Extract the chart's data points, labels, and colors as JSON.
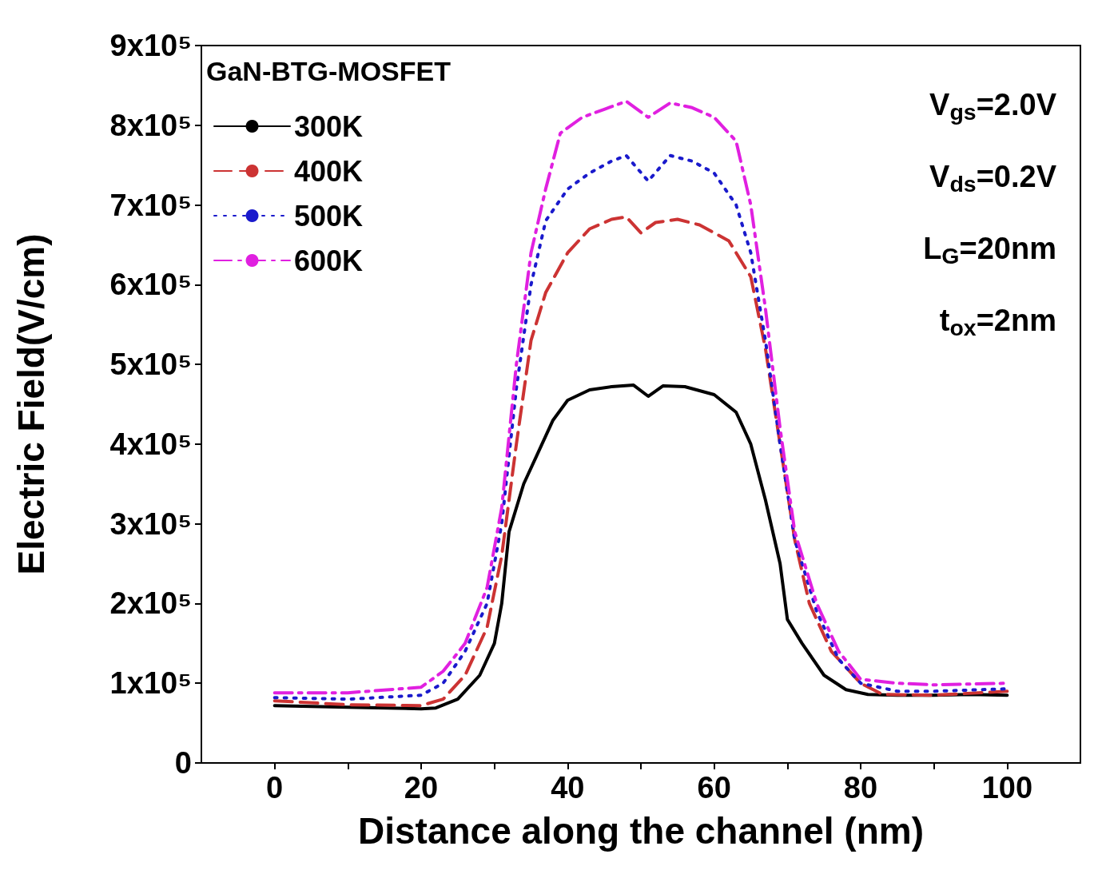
{
  "chart_data": {
    "type": "line",
    "xlabel": "Distance along the channel (nm)",
    "ylabel": "Electric Field(V/cm)",
    "legend_title": "GaN-BTG-MOSFET",
    "legend": "top left",
    "grid": false,
    "marker": "none",
    "xlim": [
      -10,
      110
    ],
    "xticks": [
      0,
      {
        "value": 10,
        "label": null
      },
      20,
      {
        "value": 30,
        "label": null
      },
      40,
      {
        "value": 50,
        "label": null
      },
      60,
      {
        "value": 70,
        "label": null
      },
      80,
      {
        "value": 90,
        "label": null
      },
      100
    ],
    "ylim": [
      0,
      900000
    ],
    "yticks": [
      0,
      {
        "value": 100000,
        "label": "1x10⁵"
      },
      {
        "value": 200000,
        "label": "2x10⁵"
      },
      {
        "value": 300000,
        "label": "3x10⁵"
      },
      {
        "value": 400000,
        "label": "4x10⁵"
      },
      {
        "value": 500000,
        "label": "5x10⁵"
      },
      {
        "value": 600000,
        "label": "6x10⁵"
      },
      {
        "value": 700000,
        "label": "7x10⁵"
      },
      {
        "value": 800000,
        "label": "8x10⁵"
      },
      {
        "value": 900000,
        "label": "9x10⁵"
      }
    ],
    "annotations": [
      "V$_{gs}$=2.0V",
      "V$_{ds}$=0.2V",
      "L$_{G}$=20nm",
      "t$_{ox}$=2nm"
    ],
    "series": [
      {
        "name": "300K",
        "color": "#000000",
        "line_style": "solid",
        "x": [
          0,
          10,
          20,
          22,
          25,
          28,
          30,
          31,
          32,
          34,
          36,
          38,
          40,
          43,
          46,
          49,
          51,
          53,
          56,
          60,
          63,
          65,
          67,
          69,
          70,
          72,
          75,
          78,
          81,
          85,
          90,
          95,
          100
        ],
        "values": [
          72000,
          70000,
          68000,
          69000,
          80000,
          110000,
          150000,
          200000,
          290000,
          350000,
          390000,
          430000,
          455000,
          468000,
          472000,
          474000,
          460000,
          473000,
          472000,
          462000,
          440000,
          400000,
          330000,
          250000,
          180000,
          150000,
          110000,
          92000,
          86000,
          85000,
          85000,
          86000,
          85000
        ]
      },
      {
        "name": "400K",
        "color": "#cc3333",
        "line_style": "dashed",
        "x": [
          0,
          10,
          20,
          23,
          26,
          29,
          31,
          33,
          35,
          37,
          40,
          43,
          46,
          48,
          50,
          52,
          55,
          58,
          62,
          65,
          67,
          69,
          71,
          73,
          76,
          80,
          83,
          90,
          100
        ],
        "values": [
          78000,
          73000,
          72000,
          80000,
          110000,
          170000,
          260000,
          400000,
          530000,
          590000,
          640000,
          670000,
          682000,
          685000,
          665000,
          678000,
          682000,
          675000,
          655000,
          610000,
          520000,
          400000,
          280000,
          200000,
          140000,
          100000,
          86000,
          85000,
          90000
        ]
      },
      {
        "name": "500K",
        "color": "#1a1acc",
        "line_style": "dotted",
        "x": [
          0,
          10,
          20,
          23,
          26,
          29,
          31,
          33,
          35,
          37,
          40,
          43,
          46,
          48,
          51,
          54,
          57,
          60,
          63,
          65,
          67,
          69,
          71,
          74,
          77,
          80,
          85,
          90,
          100
        ],
        "values": [
          82000,
          80000,
          85000,
          100000,
          140000,
          200000,
          300000,
          470000,
          600000,
          680000,
          720000,
          740000,
          755000,
          762000,
          730000,
          762000,
          755000,
          740000,
          700000,
          640000,
          530000,
          400000,
          280000,
          190000,
          130000,
          100000,
          90000,
          90000,
          93000
        ]
      },
      {
        "name": "600K",
        "color": "#e020e0",
        "line_style": "dashdot",
        "x": [
          0,
          10,
          20,
          23,
          26,
          29,
          31,
          33,
          35,
          37,
          39,
          42,
          45,
          48,
          51,
          54,
          57,
          60,
          63,
          65,
          67,
          69,
          71,
          74,
          77,
          80,
          85,
          90,
          100
        ],
        "values": [
          88000,
          88000,
          95000,
          115000,
          150000,
          220000,
          320000,
          500000,
          640000,
          720000,
          790000,
          810000,
          820000,
          830000,
          810000,
          828000,
          822000,
          810000,
          780000,
          700000,
          570000,
          420000,
          290000,
          200000,
          140000,
          105000,
          100000,
          98000,
          100000
        ]
      }
    ]
  }
}
